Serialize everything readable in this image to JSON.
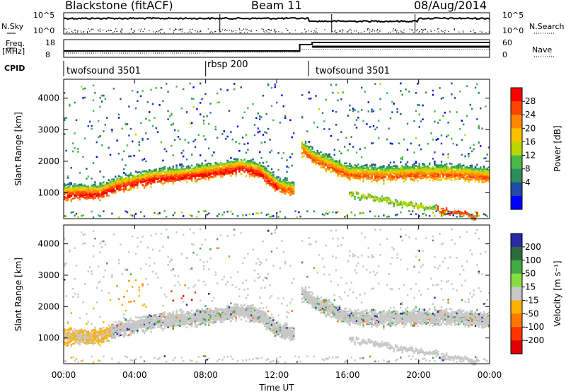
{
  "header": {
    "station": "Blackstone (fitACF)",
    "beam": "Beam 11",
    "date": "08/Aug/2014"
  },
  "side_labels": {
    "nsky": "N.Sky",
    "nsearch": "N.Search",
    "freq": "Freq.",
    "freq_unit": "[MHz]",
    "nave": "Nave",
    "cpid": "CPID"
  },
  "noise_axis": {
    "left_top": "10^5",
    "left_bottom": "10^0",
    "right_top": "10^5",
    "right_bottom": "10^0"
  },
  "freq_axis": {
    "top": "18",
    "bottom": "8",
    "nave_top": "60",
    "nave_bottom": "0"
  },
  "cpid_segments": [
    {
      "label": "twofsound 3501",
      "start_hour": 0
    },
    {
      "label": "rbsp 200",
      "start_hour": 8
    },
    {
      "label": "twofsound 3501",
      "start_hour": 13.75
    }
  ],
  "power_colorbar": {
    "label": "Power [dB]",
    "ticks": [
      "28",
      "24",
      "20",
      "16",
      "12",
      "8",
      "4"
    ],
    "colors": [
      "#ff0000",
      "#ff4400",
      "#ff8800",
      "#ffc000",
      "#b8d800",
      "#48b848",
      "#2e8c5a",
      "#224aa8",
      "#0000ff"
    ]
  },
  "velocity_colorbar": {
    "label": "Velocity [m s⁻¹]",
    "ticks": [
      "200",
      "100",
      "50",
      "15",
      "-15",
      "-50",
      "-100",
      "-200"
    ],
    "colors": [
      "#2a2aa8",
      "#2e6b3c",
      "#44aa44",
      "#88dd44",
      "#c8c8c8",
      "#ffb000",
      "#ff7700",
      "#ff3300",
      "#e00000"
    ]
  },
  "chart_data": [
    {
      "type": "heatmap",
      "title": "Power",
      "xlabel": "",
      "ylabel": "Slant Range [km]",
      "xlim": [
        0,
        24
      ],
      "ylim": [
        180,
        4600
      ],
      "yticks": [
        1000,
        2000,
        3000,
        4000
      ],
      "xticks": [
        "00:00",
        "04:00",
        "08:00",
        "12:00",
        "16:00",
        "20:00",
        "00:00"
      ],
      "main_band_center_km": [
        [
          0,
          1050
        ],
        [
          2,
          1080
        ],
        [
          3,
          1300
        ],
        [
          5,
          1550
        ],
        [
          7,
          1650
        ],
        [
          8,
          1720
        ],
        [
          9,
          1800
        ],
        [
          10,
          1900
        ],
        [
          11,
          1750
        ],
        [
          12,
          1300
        ],
        [
          13,
          1150
        ],
        [
          13.4,
          2500
        ],
        [
          14,
          2200
        ],
        [
          16,
          1700
        ],
        [
          18,
          1650
        ],
        [
          20,
          1700
        ],
        [
          22,
          1700
        ],
        [
          24,
          1600
        ]
      ]
    },
    {
      "type": "heatmap",
      "title": "Velocity",
      "xlabel": "Time UT",
      "ylabel": "Slant Range [km]",
      "xlim": [
        0,
        24
      ],
      "ylim": [
        180,
        4600
      ],
      "yticks": [
        1000,
        2000,
        3000,
        4000
      ],
      "xticks": [
        "00:00",
        "04:00",
        "08:00",
        "12:00",
        "16:00",
        "20:00",
        "00:00"
      ]
    }
  ],
  "xaxis": {
    "label": "Time UT",
    "ticks": [
      "00:00",
      "04:00",
      "08:00",
      "12:00",
      "16:00",
      "20:00",
      "00:00"
    ]
  },
  "yaxis": {
    "label": "Slant Range [km]",
    "ticks": [
      "4000",
      "3000",
      "2000",
      "1000"
    ]
  }
}
